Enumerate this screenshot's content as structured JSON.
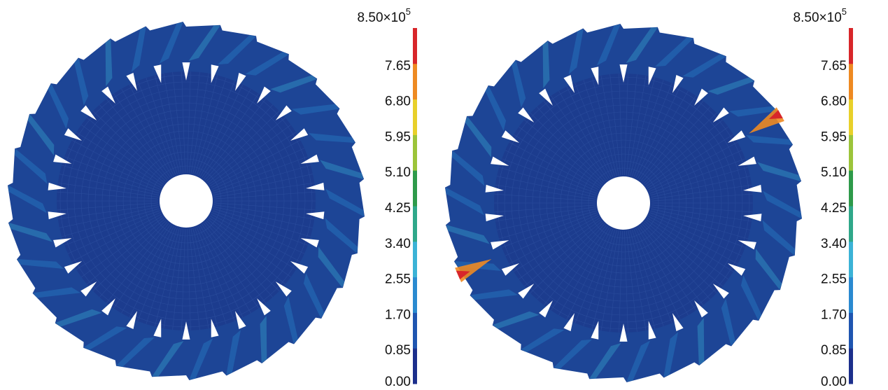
{
  "panels": [
    {
      "colorbar": {
        "top_label": "8.50×10",
        "top_exponent": "5",
        "ticks": [
          "7.65",
          "6.80",
          "5.95",
          "5.10",
          "4.25",
          "3.40",
          "2.55",
          "1.70",
          "0.85",
          "0.00"
        ]
      }
    },
    {
      "colorbar": {
        "top_label": "8.50×10",
        "top_exponent": "5",
        "ticks": [
          "7.65",
          "6.80",
          "5.95",
          "5.10",
          "4.25",
          "3.40",
          "2.55",
          "1.70",
          "0.85",
          "0.00"
        ]
      }
    }
  ],
  "colormap": [
    "#1c2f8c",
    "#1f55b0",
    "#2a8ad0",
    "#3bb2d6",
    "#2fa88a",
    "#2e9a4a",
    "#9cc43a",
    "#e8d02a",
    "#ee8a22",
    "#d8262a"
  ]
}
